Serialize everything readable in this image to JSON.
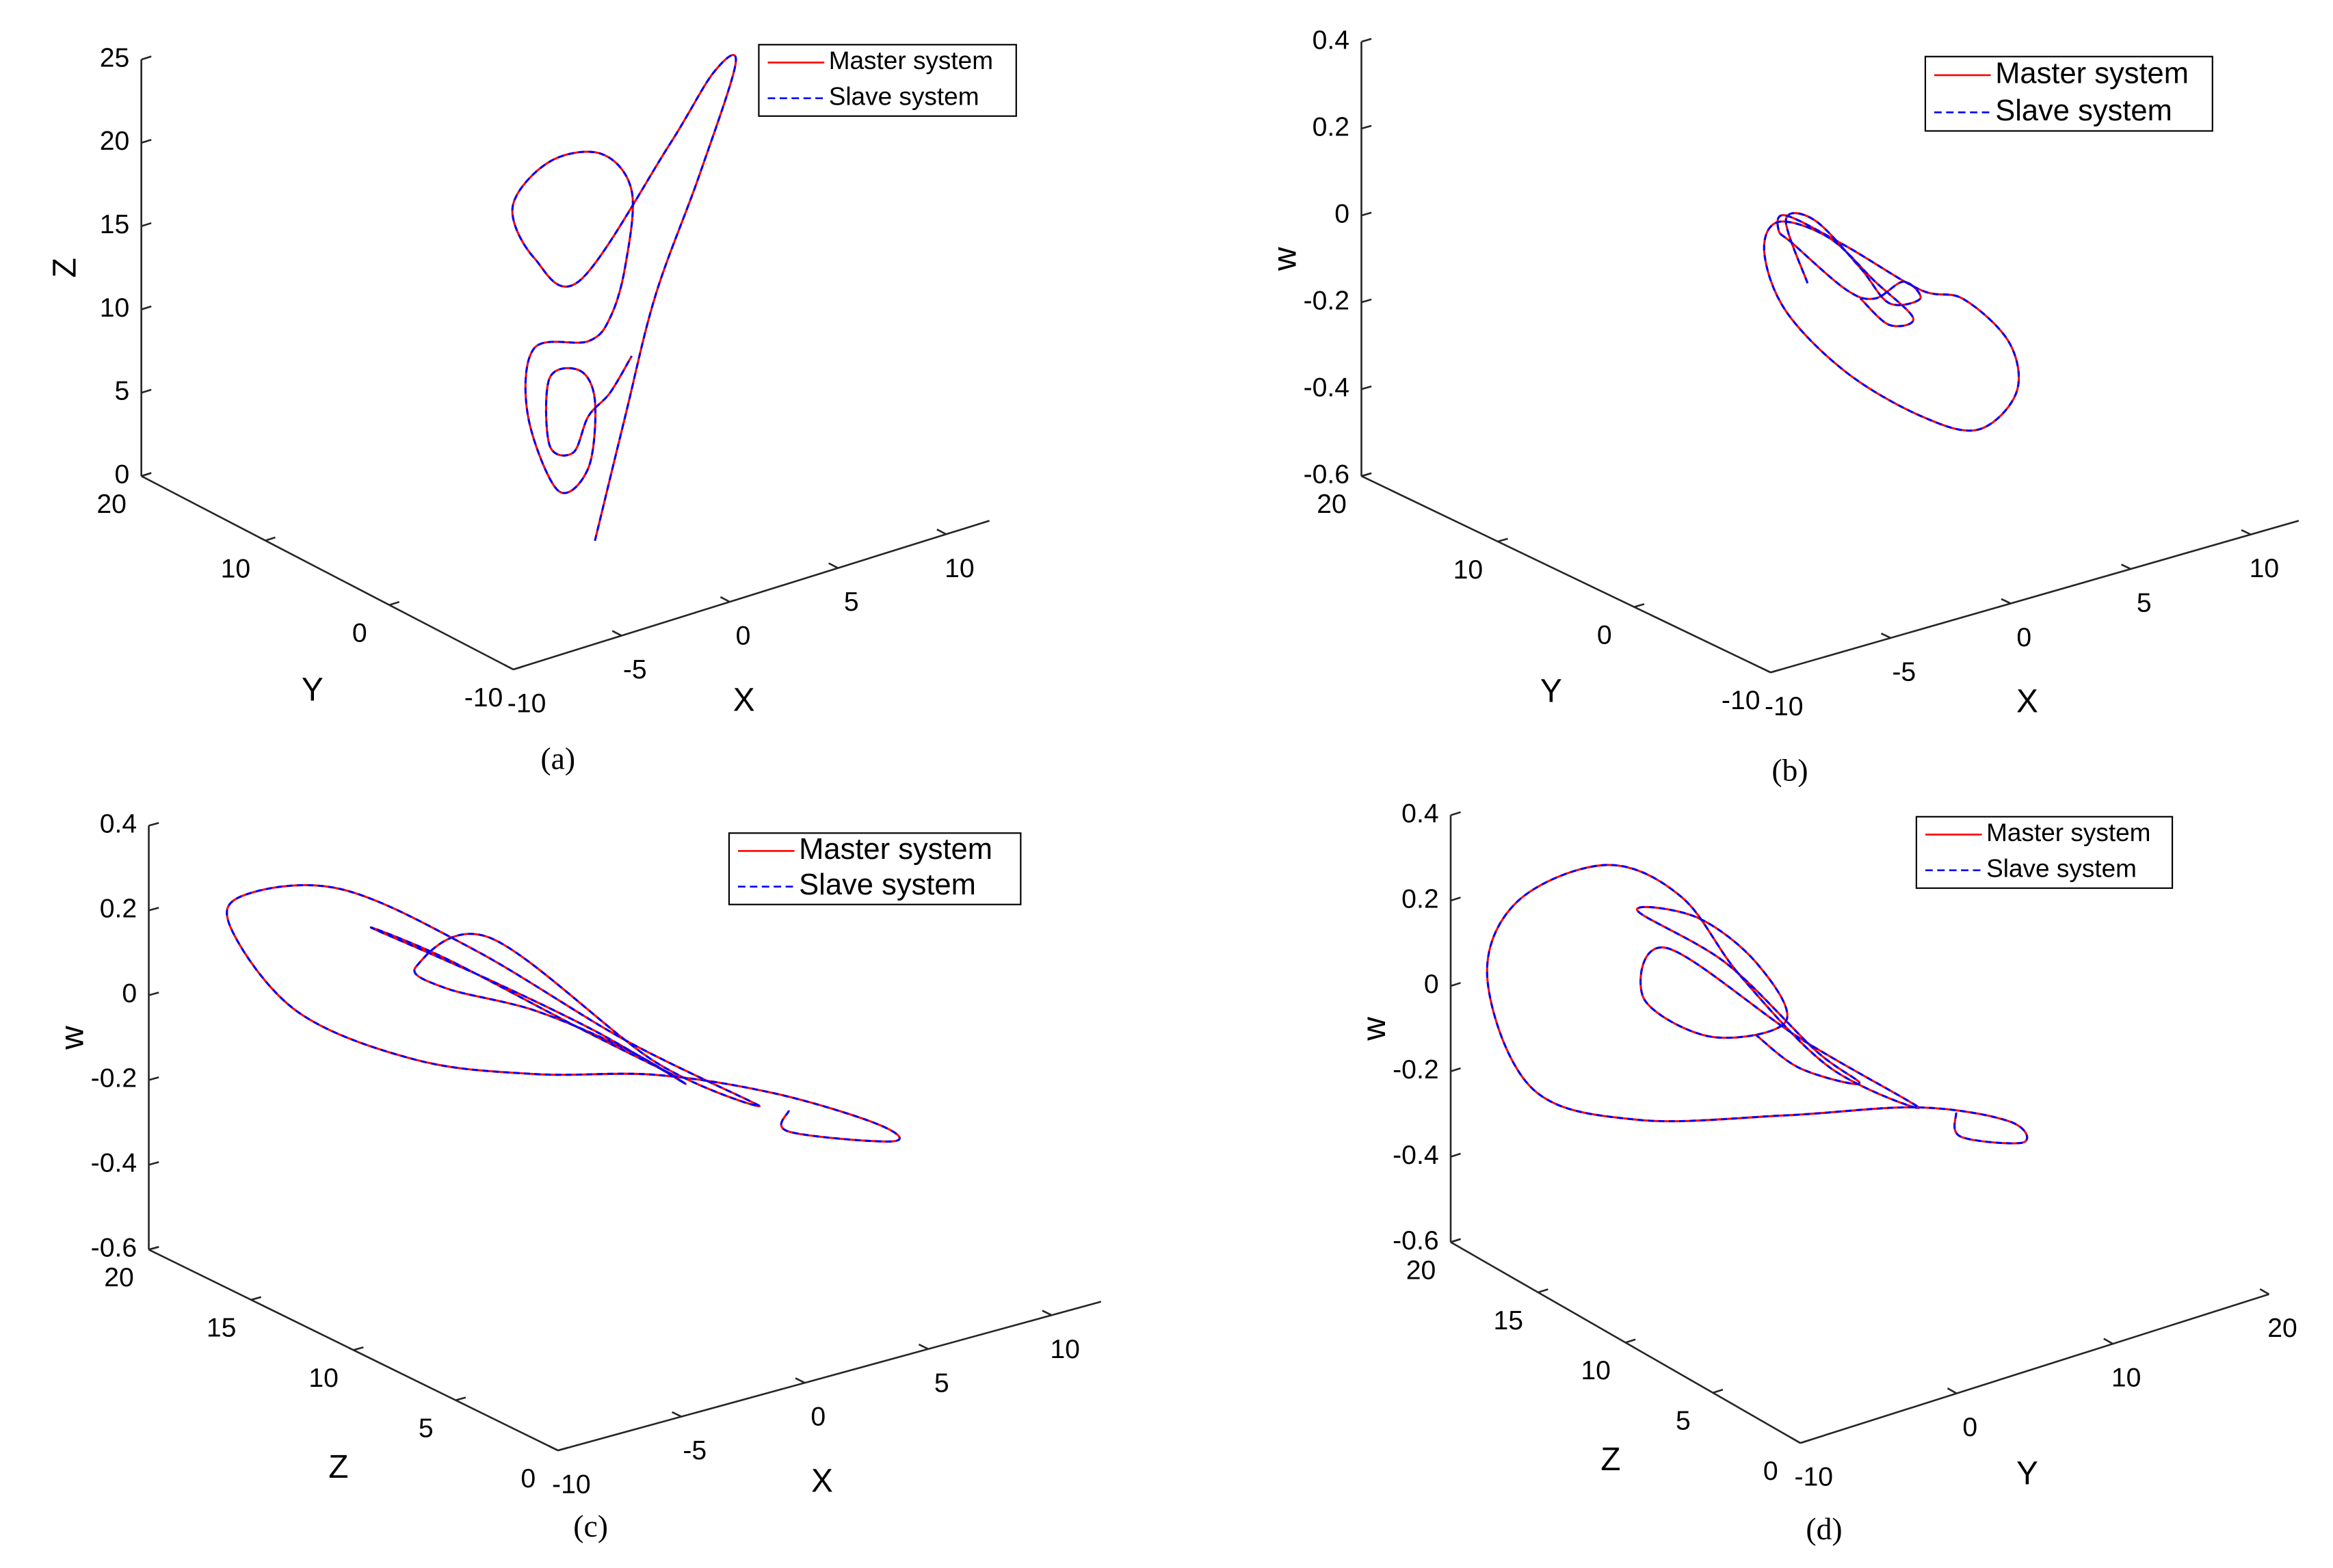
{
  "chart_data": [
    {
      "type": "line3d",
      "caption": "(a)",
      "xlabel": "X",
      "ylabel": "Y",
      "zlabel": "Z",
      "xlim": [
        -10,
        12
      ],
      "xticks": [
        -10,
        -5,
        0,
        5,
        10
      ],
      "ylim": [
        -10,
        20
      ],
      "yticks": [
        -10,
        0,
        10,
        20
      ],
      "zlim": [
        0,
        25
      ],
      "zticks": [
        0,
        5,
        10,
        15,
        20,
        25
      ],
      "legend": "upper right",
      "grid": false,
      "series": [
        {
          "name": "Master system",
          "color": "#ff0000",
          "line": "solid",
          "x": [
            -0.5,
            0.9,
            2.3,
            4.3,
            6.0,
            5.0,
            2.9,
            -1.2,
            -3.3,
            -4.3,
            -2.6,
            -0.2,
            1.2,
            0.9,
            0.2,
            -0.8,
            -3.3,
            -3.6,
            -2.2,
            -0.8,
            -0.5,
            -1.2,
            -2.6,
            -2.6,
            -1.5,
            -0.8,
            0.2,
            1.2
          ],
          "y": [
            0,
            0,
            0,
            0,
            0,
            0,
            0,
            0,
            0,
            0,
            0,
            0,
            0,
            0,
            0,
            0,
            0,
            0,
            0,
            0,
            0,
            0,
            0,
            0,
            0,
            0,
            0,
            0
          ],
          "z": [
            0,
            6.9,
            13.6,
            19.9,
            26.0,
            25.9,
            22.3,
            15.9,
            18.1,
            21.6,
            23.6,
            23.1,
            20.3,
            15.9,
            13.1,
            12.1,
            12.7,
            8.8,
            3.7,
            4.5,
            8.4,
            10.5,
            10.6,
            6.6,
            5.7,
            7.6,
            8.6,
            10.4
          ]
        },
        {
          "name": "Slave system",
          "color": "#0000ff",
          "line": "dashed",
          "x": [
            -0.5,
            0.9,
            2.3,
            4.3,
            6.0,
            5.0,
            2.9,
            -1.2,
            -3.3,
            -4.3,
            -2.6,
            -0.2,
            1.2,
            0.9,
            0.2,
            -0.8,
            -3.3,
            -3.6,
            -2.2,
            -0.8,
            -0.5,
            -1.2,
            -2.6,
            -2.6,
            -1.5,
            -0.8,
            0.2,
            1.2
          ],
          "y": [
            0,
            0,
            0,
            0,
            0,
            0,
            0,
            0,
            0,
            0,
            0,
            0,
            0,
            0,
            0,
            0,
            0,
            0,
            0,
            0,
            0,
            0,
            0,
            0,
            0,
            0,
            0,
            0
          ],
          "z": [
            0,
            6.9,
            13.6,
            19.9,
            26.0,
            25.9,
            22.3,
            15.9,
            18.1,
            21.6,
            23.6,
            23.1,
            20.3,
            15.9,
            13.1,
            12.1,
            12.7,
            8.8,
            3.7,
            4.5,
            8.4,
            10.5,
            10.6,
            6.6,
            5.7,
            7.6,
            8.6,
            10.4
          ]
        }
      ]
    },
    {
      "type": "line3d",
      "caption": "(b)",
      "xlabel": "X",
      "ylabel": "Y",
      "zlabel": "w",
      "xlim": [
        -10,
        12
      ],
      "xticks": [
        -10,
        -5,
        0,
        5,
        10
      ],
      "ylim": [
        -10,
        20
      ],
      "yticks": [
        -10,
        0,
        10,
        20
      ],
      "zlim": [
        -0.6,
        0.4
      ],
      "zticks": [
        -0.6,
        -0.4,
        -0.2,
        0,
        0.2,
        0.4
      ],
      "legend": "upper right",
      "grid": false,
      "series": [
        {
          "name": "Master system",
          "color": "#ff0000",
          "line": "solid",
          "x": [
            2.9,
            2.0,
            3.2,
            5.1,
            6.3,
            7.6,
            6.9,
            5.7,
            4.5,
            2.3,
            1.7,
            2.0,
            4.5,
            7.6,
            9.4,
            11.3,
            11.6,
            10.0,
            7.6,
            4.5,
            2.0,
            1.1,
            1.7,
            3.8,
            5.7,
            7.3,
            6.3,
            5.1
          ],
          "y": [
            10,
            10,
            10,
            10,
            10,
            10,
            10,
            10,
            10,
            10,
            10,
            10,
            10,
            10,
            10,
            10,
            10,
            10,
            10,
            10,
            10,
            10,
            10,
            10,
            10,
            10,
            10,
            10
          ],
          "z": [
            -0.21,
            -0.05,
            -0.07,
            -0.21,
            -0.31,
            -0.32,
            -0.27,
            -0.29,
            -0.25,
            -0.11,
            -0.07,
            -0.04,
            -0.15,
            -0.3,
            -0.35,
            -0.48,
            -0.6,
            -0.66,
            -0.59,
            -0.44,
            -0.26,
            -0.11,
            -0.05,
            -0.12,
            -0.25,
            -0.36,
            -0.36,
            -0.28
          ]
        },
        {
          "name": "Slave system",
          "color": "#0000ff",
          "line": "dashed",
          "x": [
            2.9,
            2.0,
            3.2,
            5.1,
            6.3,
            7.6,
            6.9,
            5.7,
            4.5,
            2.3,
            1.7,
            2.0,
            4.5,
            7.6,
            9.4,
            11.3,
            11.6,
            10.0,
            7.6,
            4.5,
            2.0,
            1.1,
            1.7,
            3.8,
            5.7,
            7.3,
            6.3,
            5.1
          ],
          "y": [
            10,
            10,
            10,
            10,
            10,
            10,
            10,
            10,
            10,
            10,
            10,
            10,
            10,
            10,
            10,
            10,
            10,
            10,
            10,
            10,
            10,
            10,
            10,
            10,
            10,
            10,
            10,
            10
          ],
          "z": [
            -0.21,
            -0.05,
            -0.07,
            -0.21,
            -0.31,
            -0.32,
            -0.27,
            -0.29,
            -0.25,
            -0.11,
            -0.07,
            -0.04,
            -0.15,
            -0.3,
            -0.35,
            -0.48,
            -0.6,
            -0.66,
            -0.59,
            -0.44,
            -0.26,
            -0.11,
            -0.05,
            -0.12,
            -0.25,
            -0.36,
            -0.36,
            -0.28
          ]
        }
      ]
    },
    {
      "type": "line3d",
      "caption": "(c)",
      "xlabel": "X",
      "ylabel": "Z",
      "zlabel": "w",
      "xlim": [
        -10,
        12
      ],
      "xticks": [
        -10,
        -5,
        0,
        5,
        10
      ],
      "ylim": [
        0,
        20
      ],
      "yticks": [
        0,
        5,
        10,
        15,
        20
      ],
      "zlim": [
        -0.6,
        0.4
      ],
      "zticks": [
        -0.6,
        -0.4,
        -0.2,
        0,
        0.2,
        0.4
      ],
      "legend": "upper right",
      "grid": false,
      "series": [
        {
          "name": "Master system",
          "color": "#ff0000",
          "line": "solid",
          "x": [
            9.3,
            9.3,
            13.5,
            12.9,
            8.7,
            3.9,
            -1.0,
            -5.8,
            -10.6,
            -13.3,
            -12.7,
            -8.8,
            -3.4,
            2.7,
            8.1,
            3.9,
            -2.8,
            -5.8,
            -4.6,
            -1.0,
            2.7,
            5.1,
            1.5,
            -2.8,
            -7.6,
            -4.6,
            0.8,
            4.8
          ],
          "y": [
            12,
            12,
            12,
            12,
            12,
            12,
            12,
            12,
            12,
            12,
            12,
            12,
            12,
            12,
            12,
            12,
            12,
            12,
            12,
            12,
            12,
            12,
            12,
            12,
            12,
            12,
            12,
            12
          ],
          "z": [
            -0.39,
            -0.44,
            -0.53,
            -0.48,
            -0.34,
            -0.22,
            -0.14,
            -0.03,
            0.16,
            0.4,
            0.47,
            0.42,
            0.19,
            -0.12,
            -0.36,
            -0.19,
            0.21,
            0.19,
            0.12,
            0.01,
            -0.14,
            -0.26,
            -0.08,
            0.11,
            0.31,
            0.19,
            -0.06,
            -0.24
          ]
        },
        {
          "name": "Slave system",
          "color": "#0000ff",
          "line": "dashed",
          "x": [
            9.3,
            9.3,
            13.5,
            12.9,
            8.7,
            3.9,
            -1.0,
            -5.8,
            -10.6,
            -13.3,
            -12.7,
            -8.8,
            -3.4,
            2.7,
            8.1,
            3.9,
            -2.8,
            -5.8,
            -4.6,
            -1.0,
            2.7,
            5.1,
            1.5,
            -2.8,
            -7.6,
            -4.6,
            0.8,
            4.8
          ],
          "y": [
            12,
            12,
            12,
            12,
            12,
            12,
            12,
            12,
            12,
            12,
            12,
            12,
            12,
            12,
            12,
            12,
            12,
            12,
            12,
            12,
            12,
            12,
            12,
            12,
            12,
            12,
            12,
            12
          ],
          "z": [
            -0.39,
            -0.44,
            -0.53,
            -0.48,
            -0.34,
            -0.22,
            -0.14,
            -0.03,
            0.16,
            0.4,
            0.47,
            0.42,
            0.19,
            -0.12,
            -0.36,
            -0.19,
            0.21,
            0.19,
            0.12,
            0.01,
            -0.14,
            -0.26,
            -0.08,
            0.11,
            0.31,
            0.19,
            -0.06,
            -0.24
          ]
        }
      ]
    },
    {
      "type": "line3d",
      "caption": "(d)",
      "xlabel": "Y",
      "ylabel": "Z",
      "zlabel": "w",
      "xlim": [
        -10,
        20
      ],
      "xticks": [
        -10,
        0,
        10,
        20
      ],
      "ylim": [
        0,
        20
      ],
      "yticks": [
        0,
        5,
        10,
        15,
        20
      ],
      "zlim": [
        -0.6,
        0.4
      ],
      "zticks": [
        -0.6,
        -0.4,
        -0.2,
        0,
        0.2,
        0.4
      ],
      "legend": "upper right",
      "grid": false,
      "series": [
        {
          "name": "Master system",
          "color": "#ff0000",
          "line": "solid",
          "x": [
            13.4,
            13.7,
            17.7,
            16.8,
            11.0,
            2.5,
            -7.0,
            -13.7,
            -16.6,
            -14.7,
            -9.0,
            -4.2,
            -0.4,
            5.3,
            11.0,
            3.4,
            -5.1,
            -6.6,
            -2.3,
            2.5,
            0.6,
            -3.2,
            -7.0,
            -1.3,
            4.4,
            7.2,
            3.4,
            0.6
          ],
          "y": [
            12,
            12,
            12,
            12,
            12,
            12,
            12,
            12,
            12,
            12,
            12,
            12,
            12,
            12,
            12,
            12,
            12,
            12,
            12,
            12,
            12,
            12,
            12,
            12,
            12,
            12,
            12,
            12
          ],
          "z": [
            -0.38,
            -0.44,
            -0.5,
            -0.44,
            -0.34,
            -0.26,
            -0.16,
            -0.01,
            0.28,
            0.44,
            0.46,
            0.33,
            0.1,
            -0.18,
            -0.34,
            -0.09,
            0.22,
            0.12,
            -0.02,
            -0.04,
            0.12,
            0.27,
            0.33,
            0.14,
            -0.13,
            -0.24,
            -0.16,
            -0.05
          ]
        },
        {
          "name": "Slave system",
          "color": "#0000ff",
          "line": "dashed",
          "x": [
            13.4,
            13.7,
            17.7,
            16.8,
            11.0,
            2.5,
            -7.0,
            -13.7,
            -16.6,
            -14.7,
            -9.0,
            -4.2,
            -0.4,
            5.3,
            11.0,
            3.4,
            -5.1,
            -6.6,
            -2.3,
            2.5,
            0.6,
            -3.2,
            -7.0,
            -1.3,
            4.4,
            7.2,
            3.4,
            0.6
          ],
          "y": [
            12,
            12,
            12,
            12,
            12,
            12,
            12,
            12,
            12,
            12,
            12,
            12,
            12,
            12,
            12,
            12,
            12,
            12,
            12,
            12,
            12,
            12,
            12,
            12,
            12,
            12,
            12,
            12
          ],
          "z": [
            -0.38,
            -0.44,
            -0.5,
            -0.44,
            -0.34,
            -0.26,
            -0.16,
            -0.01,
            0.28,
            0.44,
            0.46,
            0.33,
            0.1,
            -0.18,
            -0.34,
            -0.09,
            0.22,
            0.12,
            -0.02,
            -0.04,
            0.12,
            0.27,
            0.33,
            0.14,
            -0.13,
            -0.24,
            -0.16,
            -0.05
          ]
        }
      ]
    }
  ]
}
